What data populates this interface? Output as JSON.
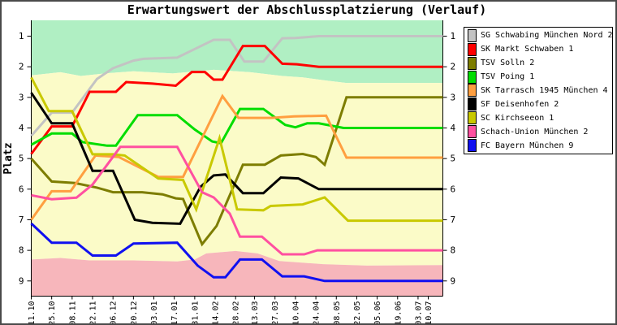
{
  "chart_data": {
    "type": "line",
    "title": "Erwartungswert der Abschlussplatzierung (Verlauf)",
    "ylabel": "Platz",
    "y_ticks": [
      1,
      2,
      3,
      4,
      5,
      6,
      7,
      8,
      9
    ],
    "y_axis_inverted": true,
    "y_tick_sides": "both",
    "grid": false,
    "legend_position": "right",
    "x_ticks": [
      {
        "label": "11.10",
        "day": 0
      },
      {
        "label": "25.10",
        "day": 14
      },
      {
        "label": "08.11",
        "day": 28
      },
      {
        "label": "22.11",
        "day": 42
      },
      {
        "label": "06.12",
        "day": 56
      },
      {
        "label": "20.12",
        "day": 70
      },
      {
        "label": "03.01",
        "day": 84
      },
      {
        "label": "17.01",
        "day": 98
      },
      {
        "label": "31.01",
        "day": 112
      },
      {
        "label": "14.02",
        "day": 126
      },
      {
        "label": "28.02",
        "day": 140
      },
      {
        "label": "13.03",
        "day": 153
      },
      {
        "label": "27.03",
        "day": 167
      },
      {
        "label": "10.04",
        "day": 181
      },
      {
        "label": "24.04",
        "day": 195
      },
      {
        "label": "08.05",
        "day": 209
      },
      {
        "label": "22.05",
        "day": 223
      },
      {
        "label": "05.06",
        "day": 237
      },
      {
        "label": "19.06",
        "day": 251
      },
      {
        "label": "03.07",
        "day": 265
      },
      {
        "label": "10.07",
        "day": 272
      }
    ],
    "x_max_day": 282,
    "zones": {
      "promotion_color": "#b0efc3",
      "midtable_color": "#fbfbc8",
      "relegation_color": "#f7b6bb",
      "upper_boundary": [
        [
          0,
          2.28
        ],
        [
          20,
          2.18
        ],
        [
          34,
          2.3
        ],
        [
          50,
          2.22
        ],
        [
          70,
          2.15
        ],
        [
          97,
          2.22
        ],
        [
          125,
          2.1
        ],
        [
          150,
          2.18
        ],
        [
          172,
          2.3
        ],
        [
          186,
          2.35
        ],
        [
          202,
          2.45
        ],
        [
          216,
          2.53
        ],
        [
          282,
          2.53
        ]
      ],
      "lower_boundary": [
        [
          0,
          8.3
        ],
        [
          20,
          8.25
        ],
        [
          40,
          8.33
        ],
        [
          70,
          8.33
        ],
        [
          100,
          8.36
        ],
        [
          112,
          8.3
        ],
        [
          120,
          8.1
        ],
        [
          140,
          8.02
        ],
        [
          155,
          8.1
        ],
        [
          170,
          8.35
        ],
        [
          200,
          8.45
        ],
        [
          230,
          8.5
        ],
        [
          282,
          8.48
        ]
      ]
    },
    "series": [
      {
        "name": "SG Schwabing München Nord 2",
        "color": "#c3c3c3",
        "points": [
          [
            0,
            4.26
          ],
          [
            14,
            3.5
          ],
          [
            28,
            3.5
          ],
          [
            45,
            2.4
          ],
          [
            56,
            2.05
          ],
          [
            70,
            1.8
          ],
          [
            77,
            1.74
          ],
          [
            100,
            1.7
          ],
          [
            125,
            1.12
          ],
          [
            136,
            1.12
          ],
          [
            146,
            1.83
          ],
          [
            159,
            1.83
          ],
          [
            172,
            1.07
          ],
          [
            181,
            1.06
          ],
          [
            197,
            1.0
          ],
          [
            282,
            1.0
          ]
        ]
      },
      {
        "name": "SK Markt Schwaben 1",
        "color": "#ff0000",
        "points": [
          [
            0,
            4.85
          ],
          [
            14,
            3.95
          ],
          [
            28,
            3.95
          ],
          [
            40,
            2.82
          ],
          [
            58,
            2.82
          ],
          [
            65,
            2.5
          ],
          [
            83,
            2.55
          ],
          [
            99,
            2.62
          ],
          [
            110,
            2.17
          ],
          [
            119,
            2.17
          ],
          [
            125,
            2.42
          ],
          [
            131,
            2.42
          ],
          [
            145,
            1.32
          ],
          [
            160,
            1.32
          ],
          [
            172,
            1.9
          ],
          [
            182,
            1.92
          ],
          [
            197,
            2.0
          ],
          [
            282,
            2.0
          ]
        ]
      },
      {
        "name": "TSV Solln 2",
        "color": "#7d7d00",
        "points": [
          [
            0,
            5.0
          ],
          [
            14,
            5.75
          ],
          [
            30,
            5.8
          ],
          [
            45,
            5.95
          ],
          [
            56,
            6.1
          ],
          [
            76,
            6.1
          ],
          [
            90,
            6.17
          ],
          [
            99,
            6.3
          ],
          [
            104,
            6.32
          ],
          [
            117,
            7.8
          ],
          [
            127,
            7.2
          ],
          [
            145,
            5.2
          ],
          [
            160,
            5.2
          ],
          [
            171,
            4.9
          ],
          [
            186,
            4.85
          ],
          [
            195,
            4.95
          ],
          [
            201,
            5.2
          ],
          [
            216,
            3.0
          ],
          [
            282,
            3.0
          ]
        ]
      },
      {
        "name": "TSV Poing 1",
        "color": "#00dd00",
        "points": [
          [
            0,
            4.55
          ],
          [
            14,
            4.18
          ],
          [
            28,
            4.18
          ],
          [
            35,
            4.46
          ],
          [
            52,
            4.58
          ],
          [
            58,
            4.58
          ],
          [
            73,
            3.58
          ],
          [
            100,
            3.58
          ],
          [
            112,
            4.05
          ],
          [
            124,
            4.44
          ],
          [
            130,
            4.5
          ],
          [
            143,
            3.38
          ],
          [
            159,
            3.38
          ],
          [
            174,
            3.9
          ],
          [
            181,
            3.98
          ],
          [
            189,
            3.85
          ],
          [
            197,
            3.85
          ],
          [
            214,
            4.0
          ],
          [
            282,
            4.0
          ]
        ]
      },
      {
        "name": "SK Tarrasch 1945 München 4",
        "color": "#ff9f40",
        "points": [
          [
            0,
            7.0
          ],
          [
            14,
            6.07
          ],
          [
            27,
            6.07
          ],
          [
            44,
            4.9
          ],
          [
            60,
            4.95
          ],
          [
            87,
            5.6
          ],
          [
            104,
            5.6
          ],
          [
            131,
            2.96
          ],
          [
            142,
            3.67
          ],
          [
            164,
            3.67
          ],
          [
            180,
            3.62
          ],
          [
            202,
            3.6
          ],
          [
            216,
            4.97
          ],
          [
            282,
            4.97
          ]
        ]
      },
      {
        "name": "SF Deisenhofen 2",
        "color": "#000000",
        "points": [
          [
            0,
            2.85
          ],
          [
            14,
            3.85
          ],
          [
            28,
            3.85
          ],
          [
            42,
            5.4
          ],
          [
            56,
            5.4
          ],
          [
            71,
            7.0
          ],
          [
            83,
            7.1
          ],
          [
            102,
            7.13
          ],
          [
            116,
            5.92
          ],
          [
            125,
            5.55
          ],
          [
            133,
            5.52
          ],
          [
            145,
            6.13
          ],
          [
            159,
            6.13
          ],
          [
            171,
            5.62
          ],
          [
            183,
            5.65
          ],
          [
            197,
            6.0
          ],
          [
            282,
            6.0
          ]
        ]
      },
      {
        "name": "SC Kirchseeon 1",
        "color": "#c9c900",
        "points": [
          [
            0,
            2.35
          ],
          [
            12,
            3.45
          ],
          [
            28,
            3.45
          ],
          [
            42,
            4.86
          ],
          [
            56,
            4.86
          ],
          [
            64,
            4.9
          ],
          [
            87,
            5.65
          ],
          [
            104,
            5.7
          ],
          [
            113,
            6.66
          ],
          [
            129,
            4.33
          ],
          [
            141,
            6.66
          ],
          [
            159,
            6.69
          ],
          [
            164,
            6.55
          ],
          [
            186,
            6.5
          ],
          [
            201,
            6.27
          ],
          [
            217,
            7.03
          ],
          [
            282,
            7.03
          ]
        ]
      },
      {
        "name": "Schach-Union München 2",
        "color": "#ff50a0",
        "points": [
          [
            0,
            6.2
          ],
          [
            14,
            6.33
          ],
          [
            31,
            6.28
          ],
          [
            42,
            5.85
          ],
          [
            61,
            4.62
          ],
          [
            100,
            4.62
          ],
          [
            117,
            6.1
          ],
          [
            125,
            6.27
          ],
          [
            136,
            6.8
          ],
          [
            143,
            7.55
          ],
          [
            158,
            7.55
          ],
          [
            172,
            8.13
          ],
          [
            187,
            8.13
          ],
          [
            196,
            8.0
          ],
          [
            282,
            8.0
          ]
        ]
      },
      {
        "name": "FC Bayern München 9",
        "color": "#1010f0",
        "points": [
          [
            0,
            7.12
          ],
          [
            14,
            7.75
          ],
          [
            31,
            7.75
          ],
          [
            42,
            8.17
          ],
          [
            58,
            8.17
          ],
          [
            70,
            7.78
          ],
          [
            100,
            7.75
          ],
          [
            114,
            8.5
          ],
          [
            125,
            8.88
          ],
          [
            133,
            8.88
          ],
          [
            143,
            8.3
          ],
          [
            158,
            8.3
          ],
          [
            172,
            8.85
          ],
          [
            187,
            8.85
          ],
          [
            201,
            9.0
          ],
          [
            282,
            9.0
          ]
        ]
      }
    ]
  }
}
